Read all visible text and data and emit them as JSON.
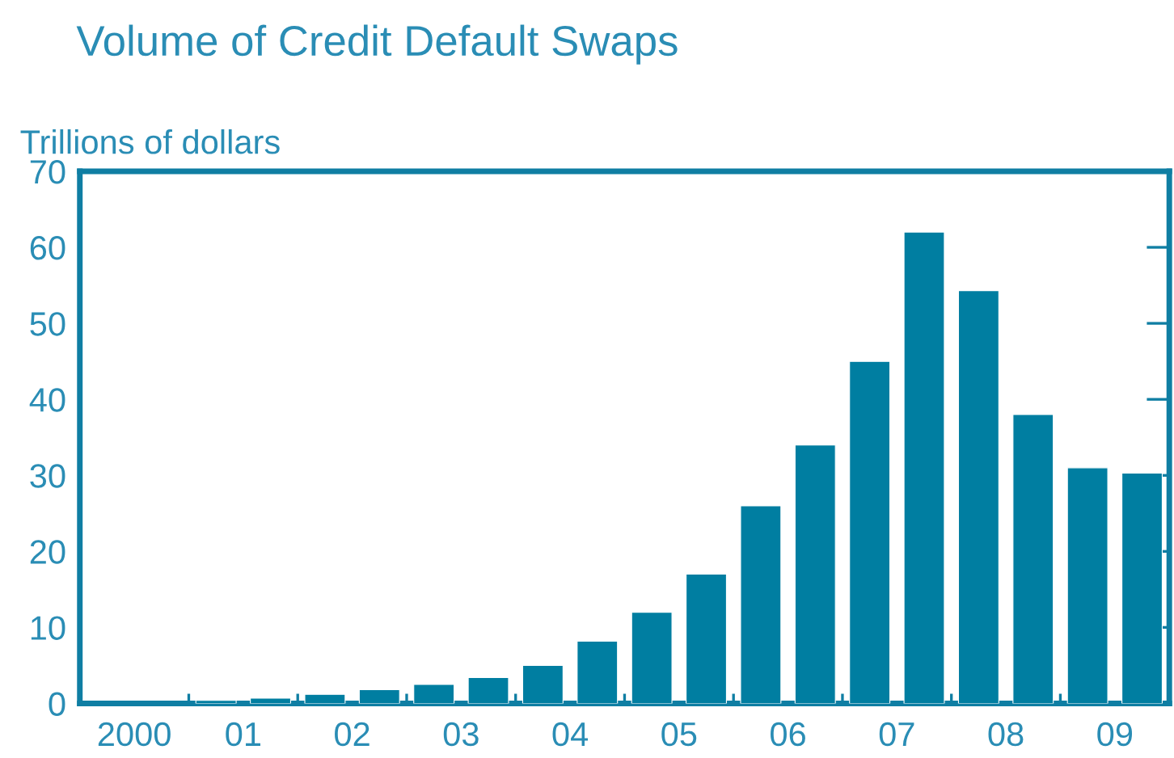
{
  "chart_data": {
    "type": "bar",
    "title": "Volume of Credit Default Swaps",
    "ylabel": "Trillions of dollars",
    "categories": [
      "2000",
      "01",
      "02",
      "03",
      "04",
      "05",
      "06",
      "07",
      "08",
      "09"
    ],
    "series": [
      {
        "color": "#007ea1",
        "values": [
          null,
          0.4,
          1.2,
          2.5,
          5.0,
          12,
          26,
          45,
          54.3,
          31
        ]
      },
      {
        "color": "#007ea1",
        "values": [
          null,
          0.7,
          1.8,
          3.4,
          8.2,
          17,
          34,
          62,
          38,
          30.3
        ]
      }
    ],
    "ylim": [
      0,
      70
    ],
    "yticks": [
      0,
      10,
      20,
      30,
      40,
      50,
      60,
      70
    ],
    "grid": false
  }
}
